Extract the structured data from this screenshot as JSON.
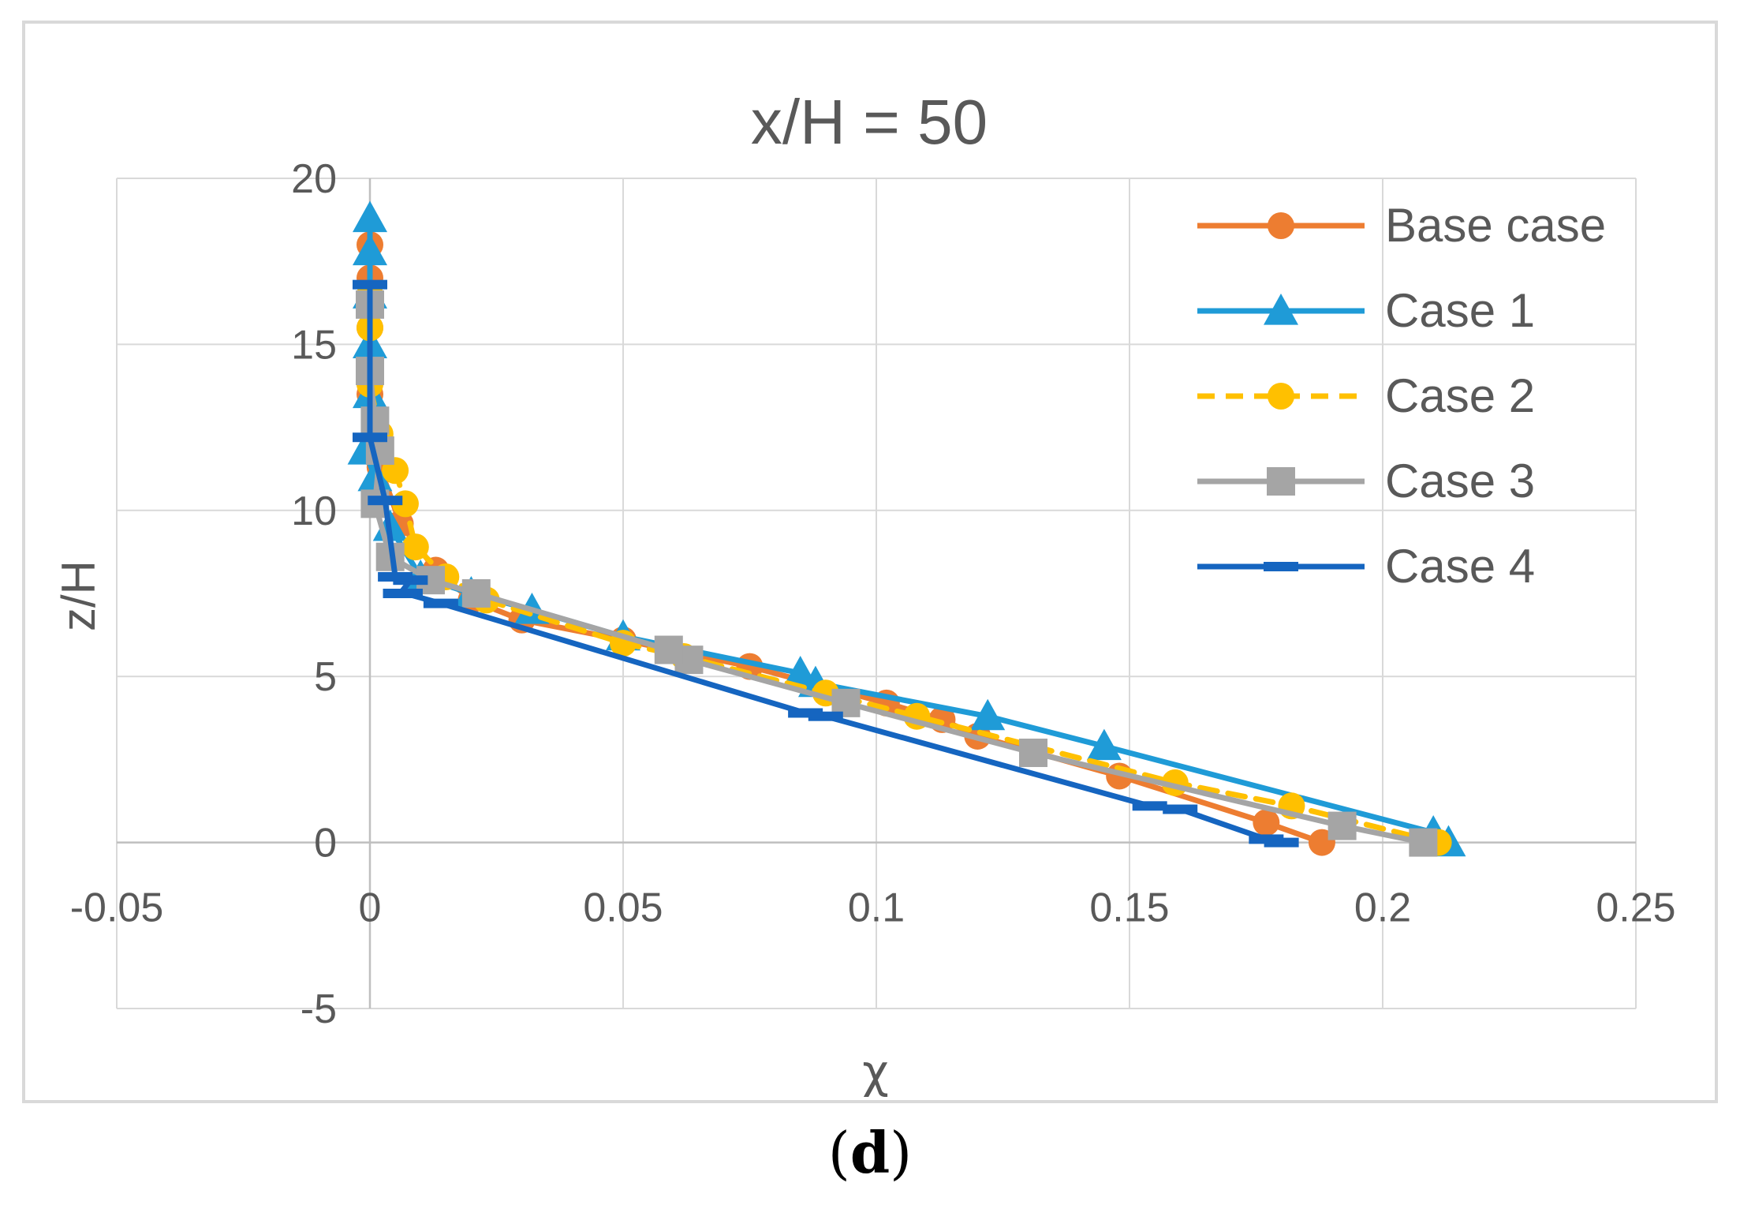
{
  "caption": {
    "open": "(",
    "letter": "d",
    "close": ")"
  },
  "chart_data": {
    "type": "line",
    "title": "x/H = 50",
    "xlabel": "χ",
    "ylabel": "z/H",
    "xlim": [
      -0.05,
      0.25
    ],
    "ylim": [
      -5,
      20
    ],
    "xticks": [
      -0.05,
      0,
      0.05,
      0.1,
      0.15,
      0.2,
      0.25
    ],
    "xtick_labels": [
      "-0.05",
      "0",
      "0.05",
      "0.1",
      "0.15",
      "0.2",
      "0.25"
    ],
    "yticks": [
      -5,
      0,
      5,
      10,
      15,
      20
    ],
    "ytick_labels": [
      "-5",
      "0",
      "5",
      "10",
      "15",
      "20"
    ],
    "grid": true,
    "legend_position": "top-right",
    "series": [
      {
        "name": "Base case",
        "color": "#ED7D31",
        "marker": "circle",
        "dash": "solid",
        "points": [
          [
            0.188,
            0
          ],
          [
            0.177,
            0.6
          ],
          [
            0.148,
            2.0
          ],
          [
            0.12,
            3.2
          ],
          [
            0.113,
            3.7
          ],
          [
            0.102,
            4.2
          ],
          [
            0.075,
            5.3
          ],
          [
            0.05,
            6.1
          ],
          [
            0.03,
            6.7
          ],
          [
            0.02,
            7.3
          ],
          [
            0.013,
            8.2
          ],
          [
            0.006,
            9.6
          ],
          [
            0.002,
            11.3
          ],
          [
            0.0,
            13.5
          ],
          [
            0.0,
            15.5
          ],
          [
            0.0,
            17.0
          ],
          [
            0.0,
            18.0
          ]
        ]
      },
      {
        "name": "Case 1",
        "color": "#1F9BD7",
        "marker": "triangle",
        "dash": "solid",
        "points": [
          [
            0.213,
            0
          ],
          [
            0.21,
            0.3
          ],
          [
            0.145,
            2.9
          ],
          [
            0.122,
            3.8
          ],
          [
            0.088,
            4.8
          ],
          [
            0.085,
            5.1
          ],
          [
            0.05,
            6.2
          ],
          [
            0.032,
            7.0
          ],
          [
            0.02,
            7.5
          ],
          [
            0.01,
            8.0
          ],
          [
            0.004,
            9.5
          ],
          [
            0.001,
            11.0
          ],
          [
            -0.001,
            11.8
          ],
          [
            0.0,
            13.5
          ],
          [
            0.0,
            15.0
          ],
          [
            0.0,
            16.5
          ],
          [
            0.0,
            17.8
          ],
          [
            0.0,
            18.8
          ]
        ]
      },
      {
        "name": "Case 2",
        "color": "#FFC000",
        "marker": "circle",
        "dash": "dashed",
        "points": [
          [
            0.211,
            0
          ],
          [
            0.182,
            1.1
          ],
          [
            0.159,
            1.8
          ],
          [
            0.108,
            3.8
          ],
          [
            0.09,
            4.5
          ],
          [
            0.062,
            5.6
          ],
          [
            0.05,
            6.0
          ],
          [
            0.023,
            7.3
          ],
          [
            0.015,
            8.0
          ],
          [
            0.009,
            8.9
          ],
          [
            0.007,
            10.2
          ],
          [
            0.005,
            11.2
          ],
          [
            0.002,
            12.3
          ],
          [
            0.0,
            13.8
          ],
          [
            0.0,
            15.5
          ],
          [
            0.0,
            16.5
          ]
        ]
      },
      {
        "name": "Case 3",
        "color": "#A5A5A5",
        "marker": "square",
        "dash": "solid",
        "points": [
          [
            0.208,
            0
          ],
          [
            0.192,
            0.5
          ],
          [
            0.131,
            2.7
          ],
          [
            0.094,
            4.2
          ],
          [
            0.063,
            5.5
          ],
          [
            0.059,
            5.8
          ],
          [
            0.021,
            7.5
          ],
          [
            0.012,
            7.9
          ],
          [
            0.004,
            8.6
          ],
          [
            0.001,
            10.2
          ],
          [
            0.002,
            11.8
          ],
          [
            0.001,
            12.7
          ],
          [
            0.0,
            14.2
          ],
          [
            0.0,
            16.2
          ]
        ]
      },
      {
        "name": "Case 4",
        "color": "#1565C0",
        "marker": "dash",
        "dash": "solid",
        "points": [
          [
            0.18,
            0
          ],
          [
            0.177,
            0.1
          ],
          [
            0.16,
            1.0
          ],
          [
            0.154,
            1.1
          ],
          [
            0.09,
            3.8
          ],
          [
            0.086,
            3.9
          ],
          [
            0.014,
            7.2
          ],
          [
            0.007,
            7.5
          ],
          [
            0.006,
            7.5
          ],
          [
            0.008,
            7.9
          ],
          [
            0.005,
            8.0
          ],
          [
            0.003,
            10.3
          ],
          [
            0.0,
            12.2
          ],
          [
            0.0,
            16.8
          ]
        ]
      }
    ]
  }
}
